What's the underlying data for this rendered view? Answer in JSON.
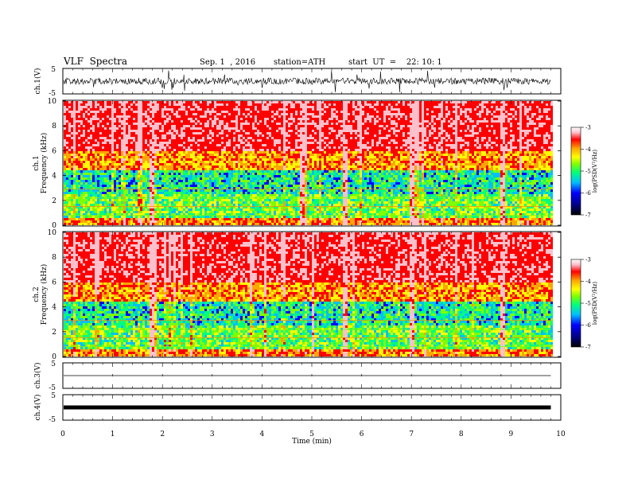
{
  "header": {
    "title": "VLF  Spectra",
    "date": "Sep. 1  , 2016",
    "station": "station=ATH",
    "start_ut": "start  UT  =    22: 10: 1"
  },
  "colors": {
    "spectrogram_scale": [
      "#000000",
      "#00008b",
      "#0000ff",
      "#00bfff",
      "#00ff7f",
      "#7fff00",
      "#ffff00",
      "#ffa500",
      "#ff0000",
      "#ffc0cb",
      "#ffffff"
    ]
  },
  "chart_data": [
    {
      "type": "line",
      "panel": "ch1-waveform",
      "ylabel": "ch.1(V)",
      "ylim": [
        -5,
        5
      ],
      "ytick_labels": [
        "5",
        "-5"
      ],
      "xlim": [
        0,
        10
      ],
      "description_values": {
        "baseline": 0,
        "typical_amplitude": 1,
        "max_spike": 4.5
      }
    },
    {
      "type": "heatmap",
      "panel": "ch1-spectrogram",
      "ylabel": "ch.1\nFrequency  (kHz)",
      "ylim": [
        0,
        10
      ],
      "ytick_labels": [
        "0",
        "2",
        "4",
        "6",
        "8",
        "10"
      ],
      "xlim": [
        0,
        10
      ],
      "data_end_min": 9.8,
      "colorbar": {
        "label": "log(PSD(V²/Hz)",
        "range": [
          -7,
          -3
        ],
        "tick_labels": [
          "-3",
          "-4",
          "-5",
          "-6",
          "-7"
        ]
      },
      "broadband_spikes_min": [
        1.75,
        4.8,
        5.65,
        7.0,
        8.8
      ]
    },
    {
      "type": "heatmap",
      "panel": "ch2-spectrogram",
      "ylabel": "ch.2\nFrequency  (kHz)",
      "ylim": [
        0,
        10
      ],
      "ytick_labels": [
        "0",
        "2",
        "4",
        "6",
        "8",
        "10"
      ],
      "xlim": [
        0,
        10
      ],
      "data_end_min": 9.8,
      "colorbar": {
        "label": "log(PSD(V²/Hz)",
        "range": [
          -7,
          -3
        ],
        "tick_labels": [
          "-3",
          "-4",
          "-5",
          "-6",
          "-7"
        ]
      },
      "broadband_spikes_min": [
        1.75,
        5.0,
        5.65,
        7.0,
        8.8
      ]
    },
    {
      "type": "line",
      "panel": "ch3-waveform",
      "ylabel": "ch.3(V)",
      "ylim": [
        -5,
        5
      ],
      "ytick_labels": [
        "5",
        "-5"
      ],
      "xlim": [
        0,
        10
      ],
      "description_values": {
        "baseline": 0
      }
    },
    {
      "type": "line",
      "panel": "ch4-waveform",
      "ylabel": "ch.4(V)",
      "ylim": [
        -5,
        5
      ],
      "ytick_labels": [
        "5",
        "-5"
      ],
      "xlim": [
        0,
        10
      ],
      "xlabel": "Time  (min)",
      "xtick_labels": [
        "0",
        "1",
        "2",
        "3",
        "4",
        "5",
        "6",
        "7",
        "8",
        "9",
        "10"
      ],
      "description_values": {
        "baseline": 0
      }
    }
  ]
}
